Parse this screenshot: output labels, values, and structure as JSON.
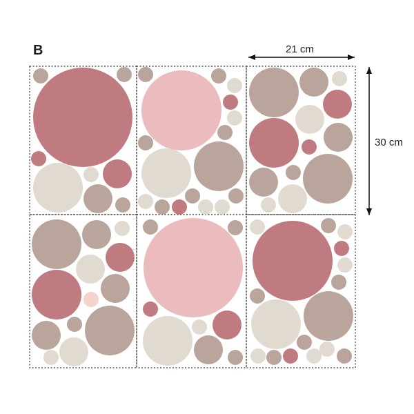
{
  "variant_label": "B",
  "dimensions": {
    "width": "21 cm",
    "height": "30 cm"
  },
  "colors": {
    "rose": "#bf7b80",
    "light_pink": "#ebbcbe",
    "taupe": "#b9a59b",
    "cream": "#e1dad0",
    "blush": "#f3d3cc",
    "outline": "#333333",
    "arrow": "#111111"
  }
}
